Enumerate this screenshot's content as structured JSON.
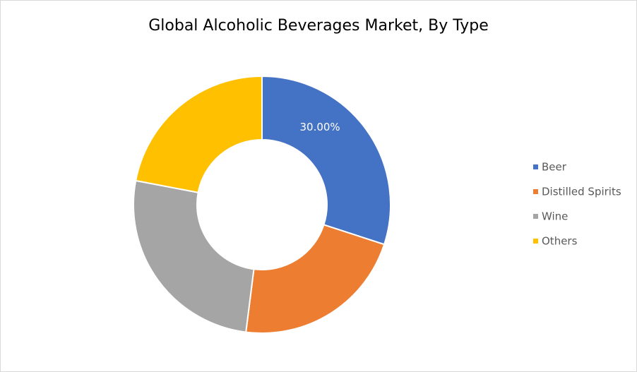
{
  "chart_data": {
    "type": "donut",
    "title": "Global Alcoholic Beverages Market, By Type",
    "categories": [
      "Beer",
      "Distilled Spirits",
      "Wine",
      "Others"
    ],
    "values": [
      30,
      22,
      26,
      22
    ],
    "value_labels": [
      "30.00%",
      null,
      null,
      null
    ],
    "colors": [
      "#4472c4",
      "#ed7d31",
      "#a5a5a5",
      "#ffc000"
    ],
    "legend": "right"
  }
}
